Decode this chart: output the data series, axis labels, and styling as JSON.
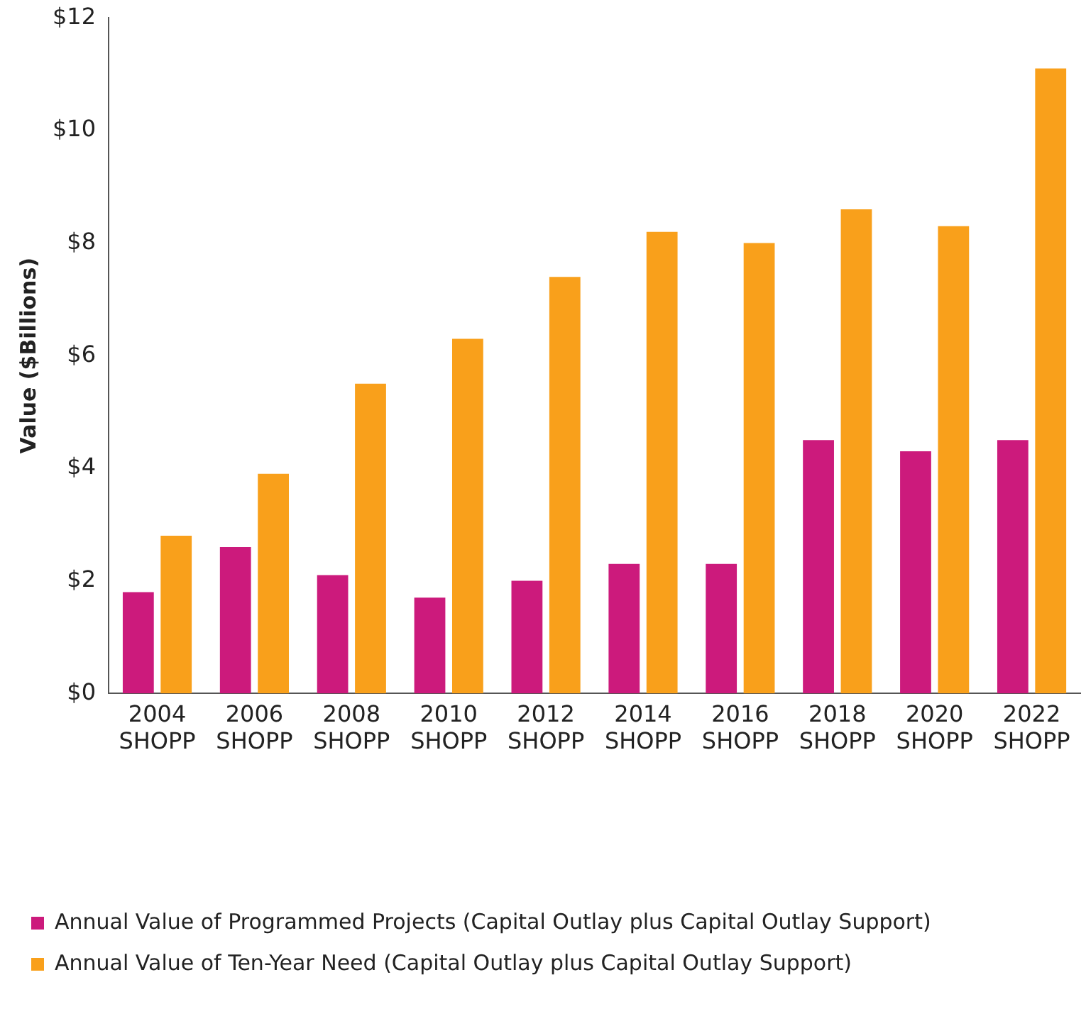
{
  "chart_data": {
    "type": "bar",
    "ylabel": "Value ($Billions)",
    "categories": [
      "2004 SHOPP",
      "2006 SHOPP",
      "2008 SHOPP",
      "2010 SHOPP",
      "2012 SHOPP",
      "2014 SHOPP",
      "2016 SHOPP",
      "2018 SHOPP",
      "2020 SHOPP",
      "2022 SHOPP"
    ],
    "series": [
      {
        "name": "Annual Value of Programmed Projects (Capital Outlay plus Capital Outlay Support)",
        "color": "#cc1a7c",
        "values": [
          1.8,
          2.6,
          2.1,
          1.7,
          2.0,
          2.3,
          2.3,
          4.5,
          4.3,
          4.5
        ]
      },
      {
        "name": "Annual Value of Ten-Year Need (Capital Outlay plus Capital Outlay Support)",
        "color": "#f9a01b",
        "values": [
          2.8,
          3.9,
          5.5,
          6.3,
          7.4,
          8.2,
          8.0,
          8.6,
          8.3,
          11.1
        ]
      }
    ],
    "ylim": [
      0,
      12
    ],
    "yticks": [
      {
        "value": 0,
        "label": "$0"
      },
      {
        "value": 2,
        "label": "$2"
      },
      {
        "value": 4,
        "label": "$4"
      },
      {
        "value": 6,
        "label": "$6"
      },
      {
        "value": 8,
        "label": "$8"
      },
      {
        "value": 10,
        "label": "$10"
      },
      {
        "value": 12,
        "label": "$12"
      }
    ],
    "grid": false,
    "legend": "bottom left"
  }
}
